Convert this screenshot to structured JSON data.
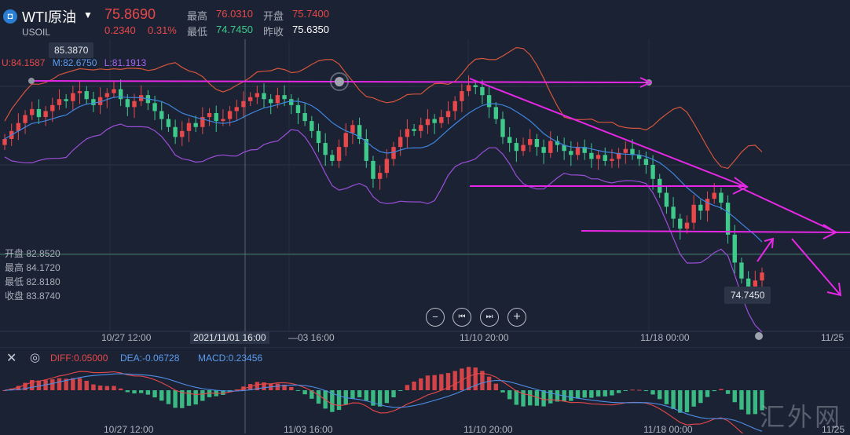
{
  "header": {
    "logo_glyph": "◘",
    "symbol": "WTI原油",
    "caret": "▼",
    "code": "USOIL",
    "price": "75.8690",
    "change": "0.2340",
    "change_pct": "0.31%",
    "high_label": "最高",
    "high": "76.0310",
    "open_label": "开盘",
    "open": "75.7400",
    "low_label": "最低",
    "low": "74.7450",
    "prev_label": "昨收",
    "prev_close": "75.6350"
  },
  "bands": {
    "upper": "U:84.1587",
    "middle": "M:82.6750",
    "lower": "L:81.1913"
  },
  "ohlc_panel": [
    "开盘 82.8520",
    "最高 84.1720",
    "最低 82.8180",
    "收盘 83.8740"
  ],
  "tags": {
    "top_price": "85.3870",
    "low_price": "74.7450"
  },
  "controls": {
    "zoom_out": "−",
    "prev": "⏮",
    "next": "⏭",
    "zoom_in": "+"
  },
  "xaxis": {
    "labels": [
      "10/27 12:00",
      "—03 16:00",
      "11/10 20:00",
      "11/18 00:00",
      "11/25"
    ],
    "crosshair_label": "2021/11/01 16:00"
  },
  "macd": {
    "close_glyph": "✕",
    "settings_glyph": "◎",
    "diff": "DIFF:0.05000",
    "dea": "DEA:-0.06728",
    "macd": "MACD:0.23456",
    "xlabels": [
      "10/27 12:00",
      "11/03 16:00",
      "11/10 20:00",
      "11/18 00:00",
      "11/25"
    ]
  },
  "watermark": "汇外网",
  "colors": {
    "up": "#e8484a",
    "down": "#3fca8c",
    "upper_band": "#d4553c",
    "middle_band": "#3f86e0",
    "lower_band": "#9b4fd8",
    "trend": "#e628e6"
  },
  "chart_data": {
    "type": "candlestick",
    "symbol": "USOIL",
    "indicators": [
      "Bollinger Bands",
      "MACD"
    ],
    "x_ticks": [
      "10/27 12:00",
      "11/03 16:00",
      "11/10 20:00",
      "11/18 00:00",
      "11/25"
    ],
    "y_range": [
      73.5,
      86.5
    ],
    "current_price": 75.869,
    "close": [
      82.6,
      83.0,
      83.4,
      83.8,
      84.1,
      83.7,
      84.0,
      84.3,
      84.6,
      84.5,
      84.9,
      85.0,
      84.6,
      84.3,
      84.7,
      84.9,
      85.1,
      84.6,
      84.2,
      84.5,
      84.8,
      84.4,
      84.0,
      83.6,
      83.2,
      82.7,
      83.0,
      83.4,
      83.2,
      83.7,
      83.9,
      83.5,
      83.6,
      84.0,
      84.2,
      84.5,
      84.7,
      84.9,
      84.6,
      84.4,
      84.8,
      84.6,
      84.3,
      83.9,
      83.5,
      83.0,
      82.4,
      81.8,
      81.5,
      82.2,
      82.9,
      83.3,
      82.6,
      81.5,
      80.6,
      80.9,
      81.6,
      82.2,
      82.7,
      83.1,
      83.0,
      83.3,
      83.6,
      83.4,
      83.7,
      84.0,
      84.5,
      85.0,
      85.3,
      85.2,
      84.8,
      84.2,
      83.6,
      82.7,
      82.4,
      82.0,
      82.3,
      82.6,
      82.2,
      81.9,
      82.5,
      82.3,
      82.0,
      81.8,
      82.2,
      81.9,
      81.6,
      81.8,
      81.5,
      81.6,
      81.9,
      82.1,
      81.8,
      81.6,
      81.3,
      80.6,
      79.9,
      79.2,
      78.6,
      78.1,
      78.4,
      79.3,
      79.0,
      79.6,
      79.9,
      79.4,
      77.8,
      76.4,
      75.6,
      75.2,
      75.5,
      75.9
    ]
  }
}
